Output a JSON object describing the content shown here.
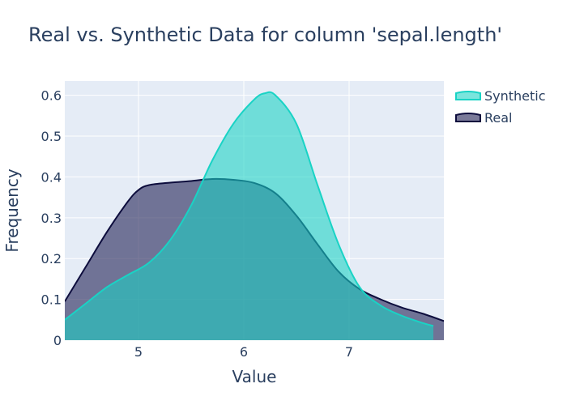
{
  "chart_data": {
    "type": "area",
    "title": "Real vs. Synthetic Data for column 'sepal.length'",
    "xlabel": "Value",
    "ylabel": "Frequency",
    "xlim": [
      4.3,
      7.9
    ],
    "ylim": [
      0,
      0.635
    ],
    "grid": true,
    "legend_position": "top-right",
    "x_ticks": [
      5,
      6,
      7
    ],
    "y_ticks": [
      0,
      0.1,
      0.2,
      0.3,
      0.4,
      0.5,
      0.6
    ],
    "x_tick_labels": [
      "5",
      "6",
      "7"
    ],
    "y_tick_labels": [
      "0",
      "0.1",
      "0.2",
      "0.3",
      "0.4",
      "0.5",
      "0.6"
    ],
    "series": [
      {
        "name": "Real",
        "line_color": "#0d0d3d",
        "fill_color": "rgba(40,40,90,0.62)",
        "x": [
          4.3,
          4.5,
          4.7,
          4.9,
          5.0,
          5.1,
          5.3,
          5.5,
          5.7,
          5.9,
          6.1,
          6.3,
          6.5,
          6.7,
          6.9,
          7.1,
          7.3,
          7.5,
          7.7,
          7.9
        ],
        "y": [
          0.095,
          0.18,
          0.265,
          0.34,
          0.368,
          0.38,
          0.386,
          0.39,
          0.395,
          0.393,
          0.385,
          0.36,
          0.305,
          0.235,
          0.168,
          0.125,
          0.1,
          0.08,
          0.065,
          0.047
        ]
      },
      {
        "name": "Synthetic",
        "line_color": "#19d3c5",
        "fill_color": "rgba(25,211,197,0.58)",
        "x": [
          4.3,
          4.5,
          4.7,
          4.9,
          5.1,
          5.3,
          5.5,
          5.7,
          5.9,
          6.1,
          6.2,
          6.3,
          6.5,
          6.7,
          6.9,
          7.1,
          7.3,
          7.5,
          7.7,
          7.8
        ],
        "y": [
          0.05,
          0.09,
          0.13,
          0.16,
          0.19,
          0.245,
          0.33,
          0.44,
          0.53,
          0.59,
          0.605,
          0.6,
          0.53,
          0.38,
          0.235,
          0.13,
          0.085,
          0.06,
          0.042,
          0.035
        ]
      }
    ]
  }
}
